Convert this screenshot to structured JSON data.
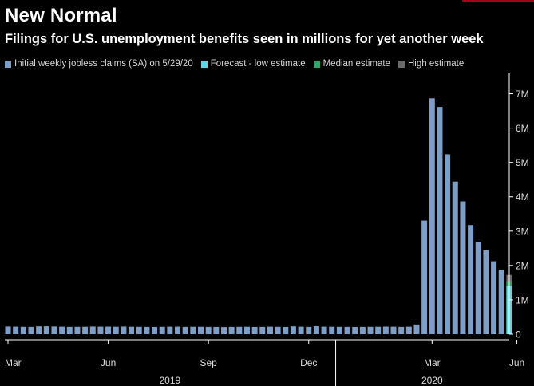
{
  "colors": {
    "actual": "#7f9ec6",
    "forecast_low": "#5fd6e3",
    "median": "#2ea36a",
    "high": "#6b6b6b",
    "axis": "#ffffff",
    "text": "#dcdcdc",
    "brand_accent": "#a4001d"
  },
  "chart_data": {
    "type": "bar",
    "title": "New Normal",
    "subtitle": "Filings for U.S. unemployment benefits seen in millions for yet another week",
    "legend": [
      {
        "key": "actual",
        "label": "Initial weekly jobless claims (SA) on 5/29/20"
      },
      {
        "key": "forecast_low",
        "label": "Forecast - low estimate"
      },
      {
        "key": "median",
        "label": "Median estimate"
      },
      {
        "key": "high",
        "label": "High estimate"
      }
    ],
    "ylim": [
      0,
      7500000
    ],
    "y_ticks": [
      {
        "value": 0,
        "label": "0"
      },
      {
        "value": 1000000,
        "label": "1M"
      },
      {
        "value": 2000000,
        "label": "2M"
      },
      {
        "value": 3000000,
        "label": "3M"
      },
      {
        "value": 4000000,
        "label": "4M"
      },
      {
        "value": 5000000,
        "label": "5M"
      },
      {
        "value": 6000000,
        "label": "6M"
      },
      {
        "value": 7000000,
        "label": "7M"
      }
    ],
    "x_ticks": [
      {
        "index": 0,
        "label": "Mar"
      },
      {
        "index": 13,
        "label": "Jun"
      },
      {
        "index": 26,
        "label": "Sep"
      },
      {
        "index": 39,
        "label": "Dec"
      },
      {
        "index": 55,
        "label": "Mar"
      },
      {
        "index": 66,
        "label": "Jun"
      }
    ],
    "year_labels": [
      {
        "center_index": 21,
        "label": "2019"
      },
      {
        "center_index": 55,
        "label": "2020"
      }
    ],
    "year_divider_index": 42.5,
    "series": [
      {
        "name": "Initial weekly jobless claims (SA) on 5/29/20",
        "key": "actual",
        "values": [
          222000,
          218000,
          214000,
          212000,
          228000,
          230000,
          224000,
          218000,
          212000,
          214000,
          216000,
          222000,
          218000,
          220000,
          216000,
          222000,
          216000,
          214000,
          212000,
          210000,
          214000,
          218000,
          220000,
          212000,
          216000,
          215000,
          212000,
          210000,
          206000,
          212000,
          214000,
          216000,
          210000,
          212000,
          218000,
          214000,
          210000,
          228000,
          218000,
          212000,
          234000,
          218000,
          216000,
          214000,
          212000,
          208000,
          212000,
          214000,
          216000,
          220000,
          218000,
          212000,
          218000,
          282000,
          3307000,
          6867000,
          6615000,
          5237000,
          4442000,
          3867000,
          3176000,
          2687000,
          2446000,
          2123000,
          1877000
        ]
      },
      {
        "name": "Forecast - low estimate",
        "key": "forecast_low",
        "index": 65,
        "value": 1400000
      },
      {
        "name": "Median estimate",
        "key": "median",
        "index": 65,
        "value": 1550000
      },
      {
        "name": "High estimate",
        "key": "high",
        "index": 65,
        "value": 1725000
      }
    ]
  }
}
